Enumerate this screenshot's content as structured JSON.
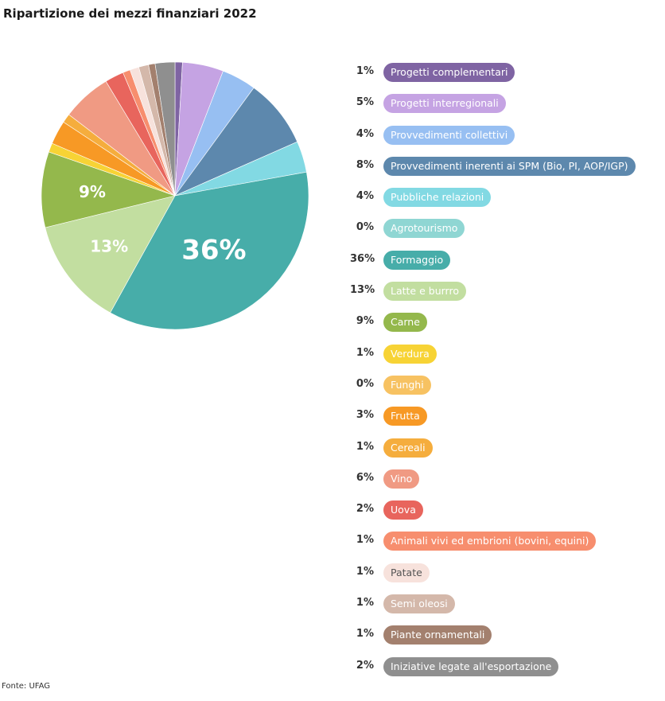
{
  "chart_data": {
    "type": "pie",
    "title": "Ripartizione dei mezzi finanziari 2022",
    "source": "Fonte: UFAG",
    "slices": [
      {
        "label": "Progetti complementari",
        "display": "1%",
        "value": 0.9,
        "color": "#7f64a3",
        "label_on_pie": false
      },
      {
        "label": "Progetti interregionali",
        "display": "5%",
        "value": 5.0,
        "color": "#c5a3e3",
        "label_on_pie": false
      },
      {
        "label": "Provvedimenti collettivi",
        "display": "4%",
        "value": 4.2,
        "color": "#97bff2",
        "label_on_pie": false
      },
      {
        "label": "Provvedimenti inerenti ai SPM (Bio, PI, AOP/IGP)",
        "display": "8%",
        "value": 8.4,
        "color": "#5d88ad",
        "label_on_pie": false
      },
      {
        "label": "Pubbliche relazioni",
        "display": "4%",
        "value": 3.8,
        "color": "#82d9e3",
        "label_on_pie": false
      },
      {
        "label": "Agrotourismo",
        "display": "0%",
        "value": 0.0,
        "color": "#8fd6d3",
        "label_on_pie": false
      },
      {
        "label": "Formaggio",
        "display": "36%",
        "value": 36.1,
        "color": "#47ada9",
        "label_on_pie": true
      },
      {
        "label": "Latte e burrro",
        "display": "13%",
        "value": 13.2,
        "color": "#c2dea0",
        "label_on_pie": true
      },
      {
        "label": "Carne",
        "display": "9%",
        "value": 9.2,
        "color": "#94b84c",
        "label_on_pie": true
      },
      {
        "label": "Verdura",
        "display": "1%",
        "value": 1.1,
        "color": "#f7d335",
        "label_on_pie": false
      },
      {
        "label": "Funghi",
        "display": "0%",
        "value": 0.0,
        "color": "#f7c262",
        "label_on_pie": false
      },
      {
        "label": "Frutta",
        "display": "3%",
        "value": 2.9,
        "color": "#f79925",
        "label_on_pie": false
      },
      {
        "label": "Cereali",
        "display": "1%",
        "value": 1.1,
        "color": "#f5ad3d",
        "label_on_pie": false
      },
      {
        "label": "Vino",
        "display": "6%",
        "value": 6.0,
        "color": "#f09a83",
        "label_on_pie": false
      },
      {
        "label": "Uova",
        "display": "2%",
        "value": 2.3,
        "color": "#e8655d",
        "label_on_pie": false
      },
      {
        "label": "Animali vivi ed embrioni (bovini, equini)",
        "display": "1%",
        "value": 0.9,
        "color": "#f78e6e",
        "label_on_pie": false
      },
      {
        "label": "Patate",
        "display": "1%",
        "value": 1.1,
        "color": "#f7e2dc",
        "label_on_pie": false
      },
      {
        "label": "Semi oleosi",
        "display": "1%",
        "value": 1.2,
        "color": "#d4b8aa",
        "label_on_pie": false
      },
      {
        "label": "Piante ornamentali",
        "display": "1%",
        "value": 0.8,
        "color": "#a3806e",
        "label_on_pie": false
      },
      {
        "label": "Iniziative legate all'esportazione",
        "display": "2%",
        "value": 2.4,
        "color": "#8f8f8f",
        "label_on_pie": false
      }
    ],
    "legend_position": "right"
  }
}
